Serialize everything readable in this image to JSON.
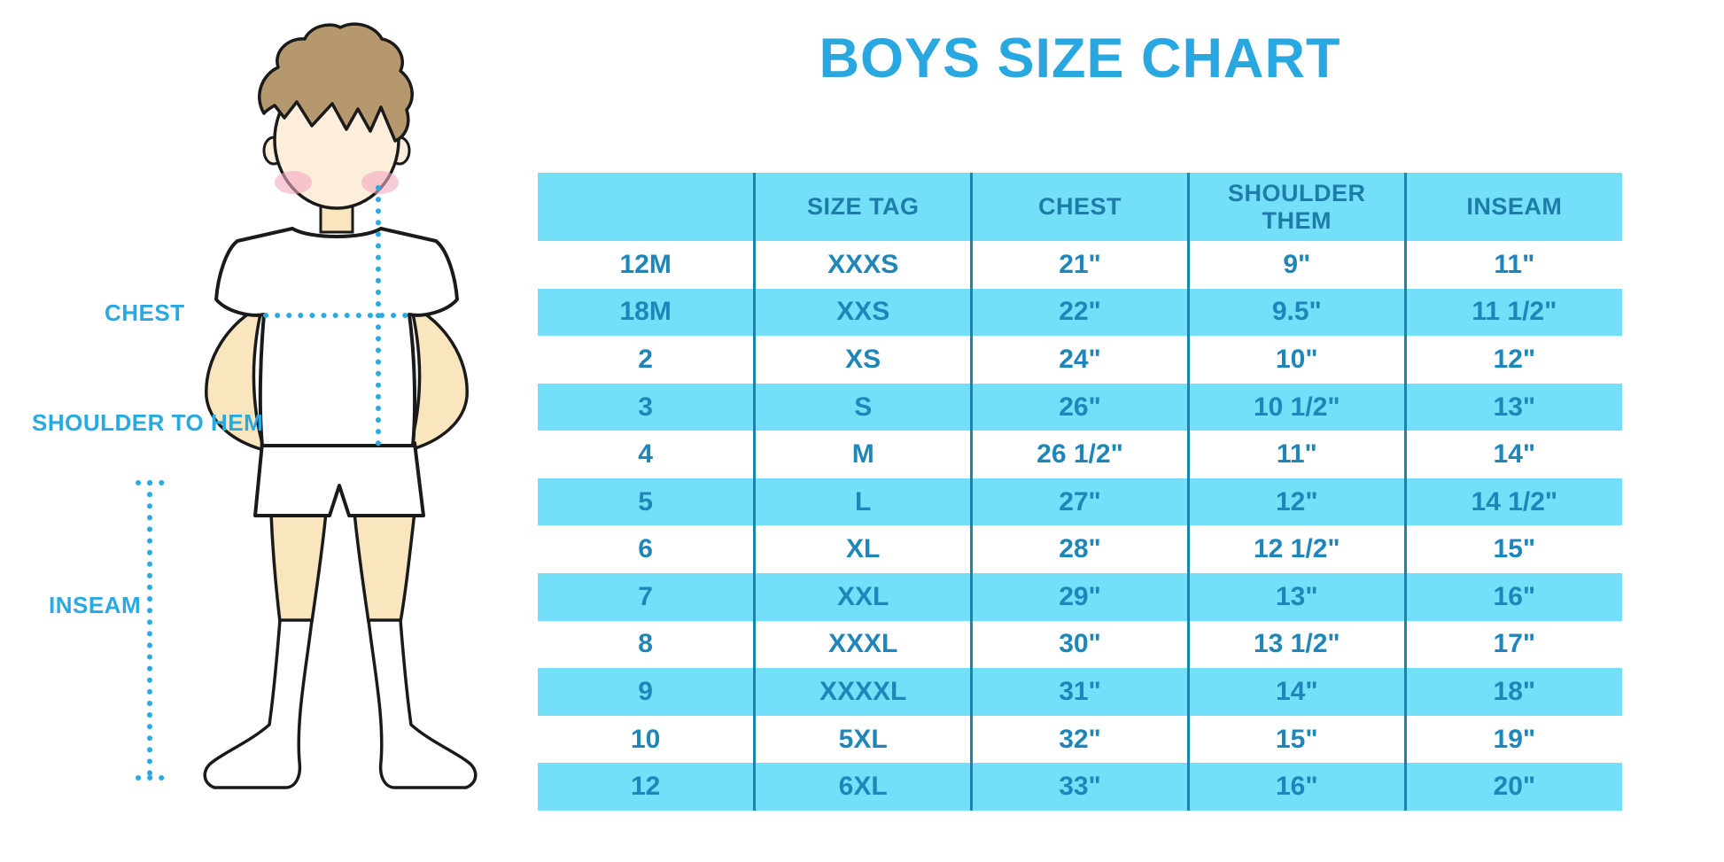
{
  "title": "BOYS SIZE CHART",
  "figure": {
    "labels": {
      "chest": "CHEST",
      "shoulder_to_hem": "SHOULDER TO HEM",
      "inseam": "INSEAM"
    }
  },
  "chart_data": {
    "type": "table",
    "title": "BOYS SIZE CHART",
    "columns": [
      "",
      "SIZE TAG",
      "CHEST",
      "SHOULDER THEM",
      "INSEAM"
    ],
    "rows": [
      [
        "12M",
        "XXXS",
        "21\"",
        "9\"",
        "11\""
      ],
      [
        "18M",
        "XXS",
        "22\"",
        "9.5\"",
        "11 1/2\""
      ],
      [
        "2",
        "XS",
        "24\"",
        "10\"",
        "12\""
      ],
      [
        "3",
        "S",
        "26\"",
        "10 1/2\"",
        "13\""
      ],
      [
        "4",
        "M",
        "26 1/2\"",
        "11\"",
        "14\""
      ],
      [
        "5",
        "L",
        "27\"",
        "12\"",
        "14 1/2\""
      ],
      [
        "6",
        "XL",
        "28\"",
        "12 1/2\"",
        "15\""
      ],
      [
        "7",
        "XXL",
        "29\"",
        "13\"",
        "16\""
      ],
      [
        "8",
        "XXXL",
        "30\"",
        "13 1/2\"",
        "17\""
      ],
      [
        "9",
        "XXXXL",
        "31\"",
        "14\"",
        "18\""
      ],
      [
        "10",
        "5XL",
        "32\"",
        "15\"",
        "19\""
      ],
      [
        "12",
        "6XL",
        "33\"",
        "16\"",
        "20\""
      ]
    ],
    "row_striping": [
      "white",
      "blue"
    ],
    "grid": "vertical-lines-only",
    "legend": "none"
  },
  "colors": {
    "accent_blue": "#29A9E1",
    "row_blue": "#74DFF8",
    "grid_line": "#1B84AD",
    "cell_text": "#1F86BA",
    "header_text": "#1E7CA8",
    "hair": "#B5986E",
    "face": "#FDEEDC",
    "skin": "#F9E5BE",
    "blush": "#F2A9BE",
    "outline": "#1A1A1A"
  }
}
